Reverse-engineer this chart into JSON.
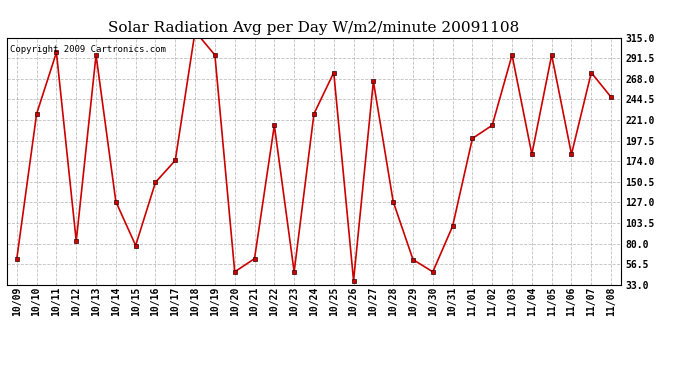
{
  "title": "Solar Radiation Avg per Day W/m2/minute 20091108",
  "copyright": "Copyright 2009 Cartronics.com",
  "labels": [
    "10/09",
    "10/10",
    "10/11",
    "10/12",
    "10/13",
    "10/14",
    "10/15",
    "10/16",
    "10/17",
    "10/18",
    "10/19",
    "10/20",
    "10/21",
    "10/22",
    "10/23",
    "10/24",
    "10/25",
    "10/26",
    "10/27",
    "10/28",
    "10/29",
    "10/30",
    "10/31",
    "11/01",
    "11/02",
    "11/03",
    "11/04",
    "11/05",
    "11/06",
    "11/07",
    "11/08"
  ],
  "values": [
    63,
    228,
    298,
    83,
    295,
    128,
    78,
    150,
    175,
    322,
    295,
    48,
    63,
    215,
    48,
    228,
    275,
    38,
    265,
    128,
    62,
    48,
    100,
    200,
    215,
    295,
    182,
    295,
    182,
    275,
    247
  ],
  "line_color": "#cc0000",
  "marker_color": "#cc0000",
  "bg_color": "#ffffff",
  "plot_bg_color": "#ffffff",
  "grid_color": "#b0b0b0",
  "ylim": [
    33.0,
    315.0
  ],
  "yticks": [
    33.0,
    56.5,
    80.0,
    103.5,
    127.0,
    150.5,
    174.0,
    197.5,
    221.0,
    244.5,
    268.0,
    291.5,
    315.0
  ],
  "title_fontsize": 11,
  "tick_fontsize": 7,
  "copyright_fontsize": 6.5
}
